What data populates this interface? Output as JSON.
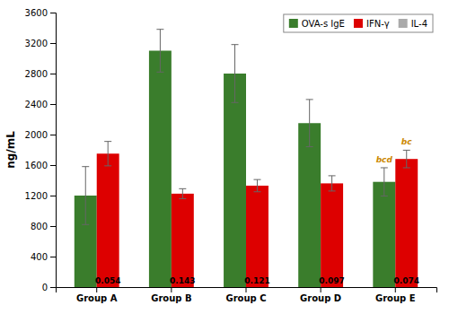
{
  "chart_data": {
    "type": "bar",
    "categories": [
      "Group A",
      "Group B",
      "Group C",
      "Group D",
      "Group E"
    ],
    "series": [
      {
        "name": "OVA-s IgE",
        "color": "#3a7d2c",
        "values": [
          1200,
          3100,
          2800,
          2150,
          1380
        ],
        "errors": [
          380,
          280,
          380,
          310,
          185
        ]
      },
      {
        "name": "IFN-γ",
        "color": "#dd0000",
        "values": [
          1750,
          1225,
          1330,
          1360,
          1680
        ],
        "errors": [
          160,
          65,
          80,
          100,
          115
        ]
      },
      {
        "name": "IL-4",
        "color": "#aaaaaa",
        "type": "text",
        "values": [
          0.054,
          0.143,
          0.121,
          0.097,
          0.074
        ]
      }
    ],
    "annotations": [
      {
        "text": "bcd",
        "category": "Group E",
        "series": "OVA-s IgE",
        "color": "#cc8800"
      },
      {
        "text": "bc",
        "category": "Group E",
        "series": "IFN-γ",
        "color": "#cc8800"
      }
    ],
    "ylabel": "ng/mL",
    "ylim": [
      0,
      3600
    ],
    "yticks": [
      0,
      400,
      800,
      1200,
      1600,
      2000,
      2400,
      2800,
      3200,
      3600
    ],
    "grid": false,
    "legend": "upper right"
  }
}
